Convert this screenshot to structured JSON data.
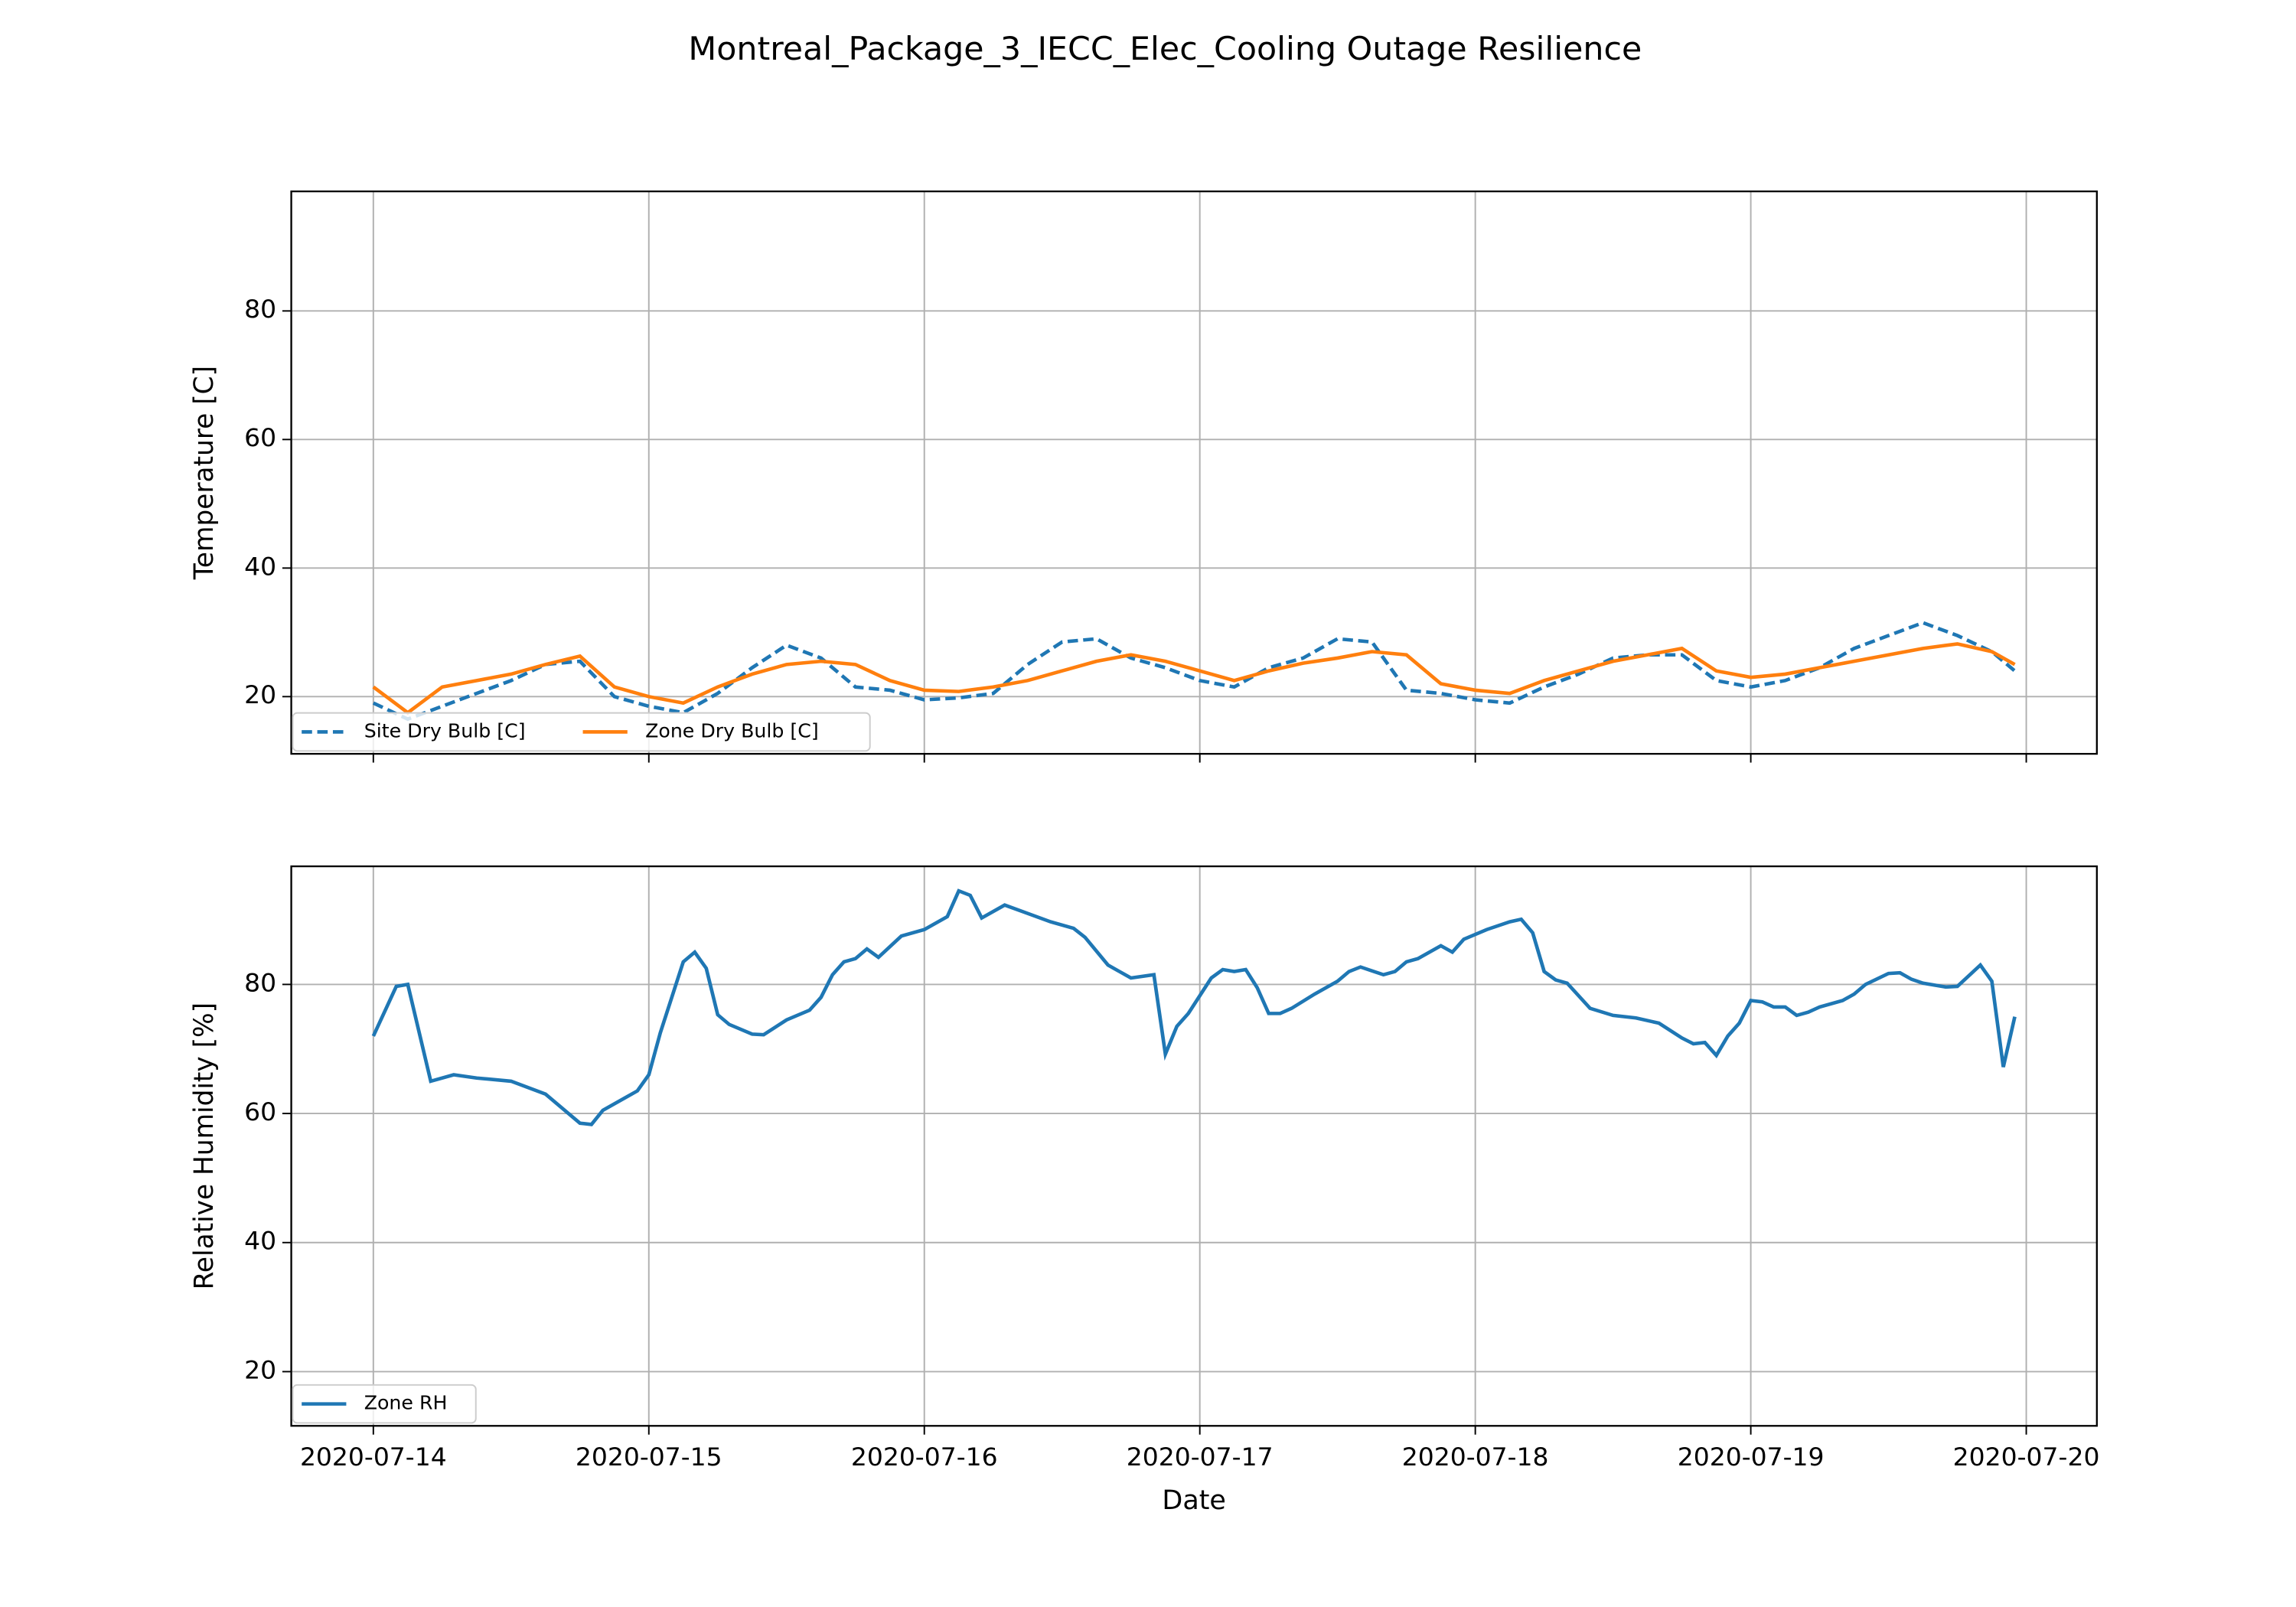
{
  "title": "Montreal_Package_3_IECC_Elec_Cooling Outage Resilience",
  "chart_data": [
    {
      "type": "line",
      "ylabel": "Temperature [C]",
      "ylim": [
        11.1,
        98.6
      ],
      "yticks": [
        20,
        40,
        60,
        80
      ],
      "xlim": [
        "2020-07-13 16:51",
        "2020-07-20 06:09"
      ],
      "grid": true,
      "legend": "lower left",
      "x": [
        "2020-07-14 00:00",
        "2020-07-14 03:00",
        "2020-07-14 06:00",
        "2020-07-14 09:00",
        "2020-07-14 12:00",
        "2020-07-14 15:00",
        "2020-07-14 18:00",
        "2020-07-14 21:00",
        "2020-07-15 00:00",
        "2020-07-15 03:00",
        "2020-07-15 06:00",
        "2020-07-15 09:00",
        "2020-07-15 12:00",
        "2020-07-15 15:00",
        "2020-07-15 18:00",
        "2020-07-15 21:00",
        "2020-07-16 00:00",
        "2020-07-16 03:00",
        "2020-07-16 06:00",
        "2020-07-16 09:00",
        "2020-07-16 12:00",
        "2020-07-16 15:00",
        "2020-07-16 18:00",
        "2020-07-16 21:00",
        "2020-07-17 00:00",
        "2020-07-17 03:00",
        "2020-07-17 06:00",
        "2020-07-17 09:00",
        "2020-07-17 12:00",
        "2020-07-17 15:00",
        "2020-07-17 18:00",
        "2020-07-17 21:00",
        "2020-07-18 00:00",
        "2020-07-18 03:00",
        "2020-07-18 06:00",
        "2020-07-18 09:00",
        "2020-07-18 12:00",
        "2020-07-18 15:00",
        "2020-07-18 18:00",
        "2020-07-18 21:00",
        "2020-07-19 00:00",
        "2020-07-19 03:00",
        "2020-07-19 06:00",
        "2020-07-19 09:00",
        "2020-07-19 12:00",
        "2020-07-19 15:00",
        "2020-07-19 18:00",
        "2020-07-19 21:00",
        "2020-07-19 23:00"
      ],
      "series": [
        {
          "name": "Site Dry Bulb [C]",
          "color": "#1f77b4",
          "linestyle": "dashed",
          "values": [
            19,
            16.5,
            18.5,
            20.5,
            22.5,
            25,
            25.5,
            20,
            18.5,
            17.5,
            20.5,
            24.5,
            28,
            26,
            21.5,
            21,
            19.5,
            19.8,
            20.5,
            25,
            28.5,
            29,
            26,
            24.5,
            22.5,
            21.5,
            24.5,
            26,
            29,
            28.5,
            21,
            20.5,
            19.5,
            19,
            21.5,
            23.5,
            26,
            26.5,
            26.5,
            22.5,
            21.5,
            22.5,
            24.5,
            27.5,
            29.5,
            31.5,
            29.5,
            27,
            24
          ]
        },
        {
          "name": "Zone Dry Bulb [C]",
          "color": "#ff7f0e",
          "linestyle": "solid",
          "values": [
            21.5,
            17.5,
            21.5,
            22.5,
            23.5,
            25,
            26.3,
            21.5,
            20,
            19,
            21.5,
            23.5,
            25,
            25.5,
            25,
            22.5,
            21,
            20.8,
            21.5,
            22.5,
            24,
            25.5,
            26.5,
            25.5,
            24,
            22.5,
            24,
            25.2,
            26,
            27,
            26.5,
            22,
            21,
            20.5,
            22.5,
            24,
            25.5,
            26.5,
            27.5,
            24,
            23,
            23.5,
            24.5,
            25.5,
            26.5,
            27.5,
            28.2,
            27,
            25
          ]
        }
      ]
    },
    {
      "type": "line",
      "ylabel": "Relative Humidity [%]",
      "xlabel": "Date",
      "ylim": [
        11.6,
        98.3
      ],
      "yticks": [
        20,
        40,
        60,
        80
      ],
      "xlim": [
        "2020-07-13 16:51",
        "2020-07-20 06:09"
      ],
      "xticks": [
        "2020-07-14",
        "2020-07-15",
        "2020-07-16",
        "2020-07-17",
        "2020-07-18",
        "2020-07-19",
        "2020-07-20"
      ],
      "grid": true,
      "legend": "lower left",
      "x": [
        "2020-07-14 00:00",
        "2020-07-14 02:00",
        "2020-07-14 03:00",
        "2020-07-14 05:00",
        "2020-07-14 07:00",
        "2020-07-14 09:00",
        "2020-07-14 12:00",
        "2020-07-14 15:00",
        "2020-07-14 17:00",
        "2020-07-14 18:00",
        "2020-07-14 19:00",
        "2020-07-14 20:00",
        "2020-07-14 22:00",
        "2020-07-14 23:00",
        "2020-07-15 00:00",
        "2020-07-15 01:00",
        "2020-07-15 02:00",
        "2020-07-15 03:00",
        "2020-07-15 04:00",
        "2020-07-15 05:00",
        "2020-07-15 06:00",
        "2020-07-15 07:00",
        "2020-07-15 09:00",
        "2020-07-15 10:00",
        "2020-07-15 12:00",
        "2020-07-15 14:00",
        "2020-07-15 15:00",
        "2020-07-15 16:00",
        "2020-07-15 17:00",
        "2020-07-15 18:00",
        "2020-07-15 19:00",
        "2020-07-15 20:00",
        "2020-07-15 22:00",
        "2020-07-16 00:00",
        "2020-07-16 02:00",
        "2020-07-16 03:00",
        "2020-07-16 04:00",
        "2020-07-16 05:00",
        "2020-07-16 07:00",
        "2020-07-16 09:00",
        "2020-07-16 11:00",
        "2020-07-16 13:00",
        "2020-07-16 14:00",
        "2020-07-16 16:00",
        "2020-07-16 17:00",
        "2020-07-16 18:00",
        "2020-07-16 20:00",
        "2020-07-16 21:00",
        "2020-07-16 22:00",
        "2020-07-16 23:00",
        "2020-07-17 01:00",
        "2020-07-17 02:00",
        "2020-07-17 03:00",
        "2020-07-17 04:00",
        "2020-07-17 05:00",
        "2020-07-17 06:00",
        "2020-07-17 07:00",
        "2020-07-17 08:00",
        "2020-07-17 10:00",
        "2020-07-17 12:00",
        "2020-07-17 13:00",
        "2020-07-17 14:00",
        "2020-07-17 16:00",
        "2020-07-17 17:00",
        "2020-07-17 18:00",
        "2020-07-17 19:00",
        "2020-07-17 21:00",
        "2020-07-17 22:00",
        "2020-07-17 23:00",
        "2020-07-18 01:00",
        "2020-07-18 03:00",
        "2020-07-18 04:00",
        "2020-07-18 05:00",
        "2020-07-18 06:00",
        "2020-07-18 07:00",
        "2020-07-18 08:00",
        "2020-07-18 10:00",
        "2020-07-18 12:00",
        "2020-07-18 14:00",
        "2020-07-18 16:00",
        "2020-07-18 18:00",
        "2020-07-18 19:00",
        "2020-07-18 20:00",
        "2020-07-18 21:00",
        "2020-07-18 22:00",
        "2020-07-18 23:00",
        "2020-07-19 00:00",
        "2020-07-19 01:00",
        "2020-07-19 02:00",
        "2020-07-19 03:00",
        "2020-07-19 04:00",
        "2020-07-19 05:00",
        "2020-07-19 06:00",
        "2020-07-19 08:00",
        "2020-07-19 09:00",
        "2020-07-19 10:00",
        "2020-07-19 12:00",
        "2020-07-19 13:00",
        "2020-07-19 14:00",
        "2020-07-19 15:00",
        "2020-07-19 17:00",
        "2020-07-19 18:00",
        "2020-07-19 20:00",
        "2020-07-19 21:00",
        "2020-07-19 22:00",
        "2020-07-19 23:00"
      ],
      "series": [
        {
          "name": "Zone RH",
          "color": "#1f77b4",
          "linestyle": "solid",
          "values": [
            72,
            79.7,
            80,
            65,
            66,
            65.5,
            65,
            63,
            60,
            58.5,
            58.3,
            60.5,
            62.5,
            63.5,
            66,
            72.5,
            78,
            83.5,
            85,
            82.5,
            75.3,
            73.8,
            72.3,
            72.2,
            74.5,
            76,
            78,
            81.5,
            83.5,
            84,
            85.5,
            84.2,
            87.5,
            88.5,
            90.5,
            94.5,
            93.8,
            90.3,
            92.3,
            91,
            89.7,
            88.7,
            87.3,
            83,
            82,
            81,
            81.5,
            69.2,
            73.5,
            75.5,
            81,
            82.3,
            82,
            82.3,
            79.5,
            75.5,
            75.5,
            76.3,
            78.5,
            80.5,
            82,
            82.7,
            81.5,
            82,
            83.5,
            84,
            86,
            85,
            87,
            88.5,
            89.7,
            90.1,
            88,
            82,
            80.7,
            80.2,
            76.3,
            75.2,
            74.8,
            74,
            71.7,
            70.8,
            71,
            69,
            72,
            74,
            77.5,
            77.3,
            76.5,
            76.5,
            75.2,
            75.7,
            76.5,
            77.5,
            78.5,
            80,
            81.7,
            81.8,
            80.8,
            80.2,
            79.6,
            79.7,
            83,
            80.5,
            67.2,
            75
          ]
        }
      ]
    }
  ]
}
